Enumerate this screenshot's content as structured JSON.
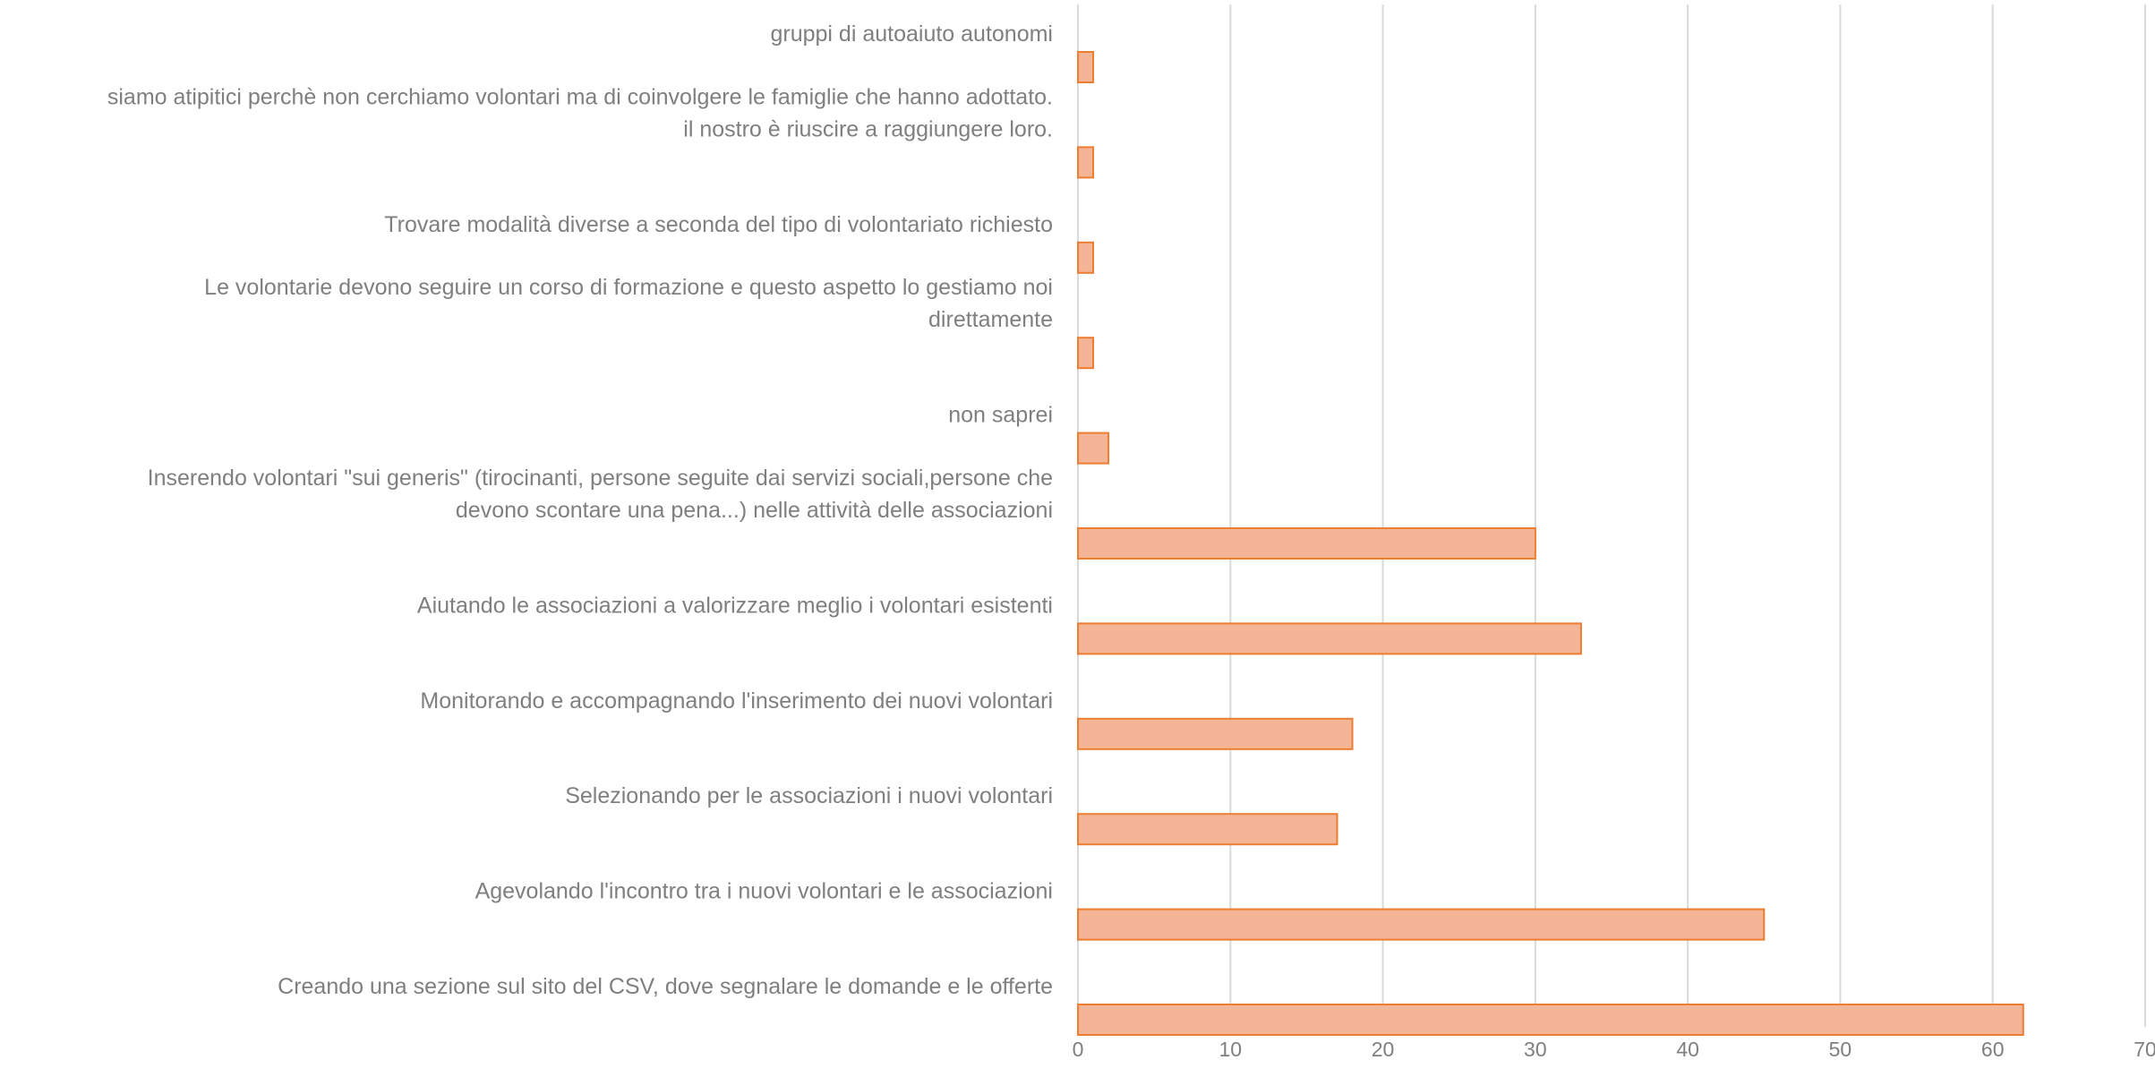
{
  "chart_data": {
    "type": "bar",
    "orientation": "horizontal",
    "title": "",
    "xlabel": "",
    "ylabel": "",
    "xlim": [
      0,
      70
    ],
    "x_ticks": [
      0,
      10,
      20,
      30,
      40,
      50,
      60,
      70
    ],
    "grid": "vertical",
    "legend": "none",
    "bar_fill": "#F4B596",
    "bar_stroke": "#ED7D31",
    "grid_color": "#D9D9D9",
    "label_color": "#7F7F7F",
    "categories": [
      [
        "gruppi di  autoaiuto autonomi"
      ],
      [
        "siamo atipitici perchè non cerchiamo volontari ma di coinvolgere le famiglie che hanno adottato.",
        "il nostro è riuscire a raggiungere loro."
      ],
      [
        "Trovare modalità diverse a seconda del tipo di volontariato richiesto"
      ],
      [
        "Le volontarie devono seguire  un corso di formazione e questo aspetto  lo gestiamo noi",
        "direttamente"
      ],
      [
        "non saprei"
      ],
      [
        "Inserendo volontari \"sui generis\" (tirocinanti, persone seguite dai servizi sociali,persone che",
        "devono scontare una pena...) nelle attività delle associazioni"
      ],
      [
        "Aiutando le associazioni a valorizzare meglio i volontari esistenti"
      ],
      [
        "Monitorando e accompagnando l'inserimento dei nuovi volontari"
      ],
      [
        "Selezionando per le associazioni i nuovi volontari"
      ],
      [
        "Agevolando l'incontro tra i nuovi volontari e le associazioni"
      ],
      [
        "Creando una sezione sul sito del CSV, dove segnalare le domande e le offerte"
      ]
    ],
    "values": [
      1,
      1,
      1,
      1,
      2,
      30,
      33,
      18,
      17,
      45,
      62
    ]
  }
}
